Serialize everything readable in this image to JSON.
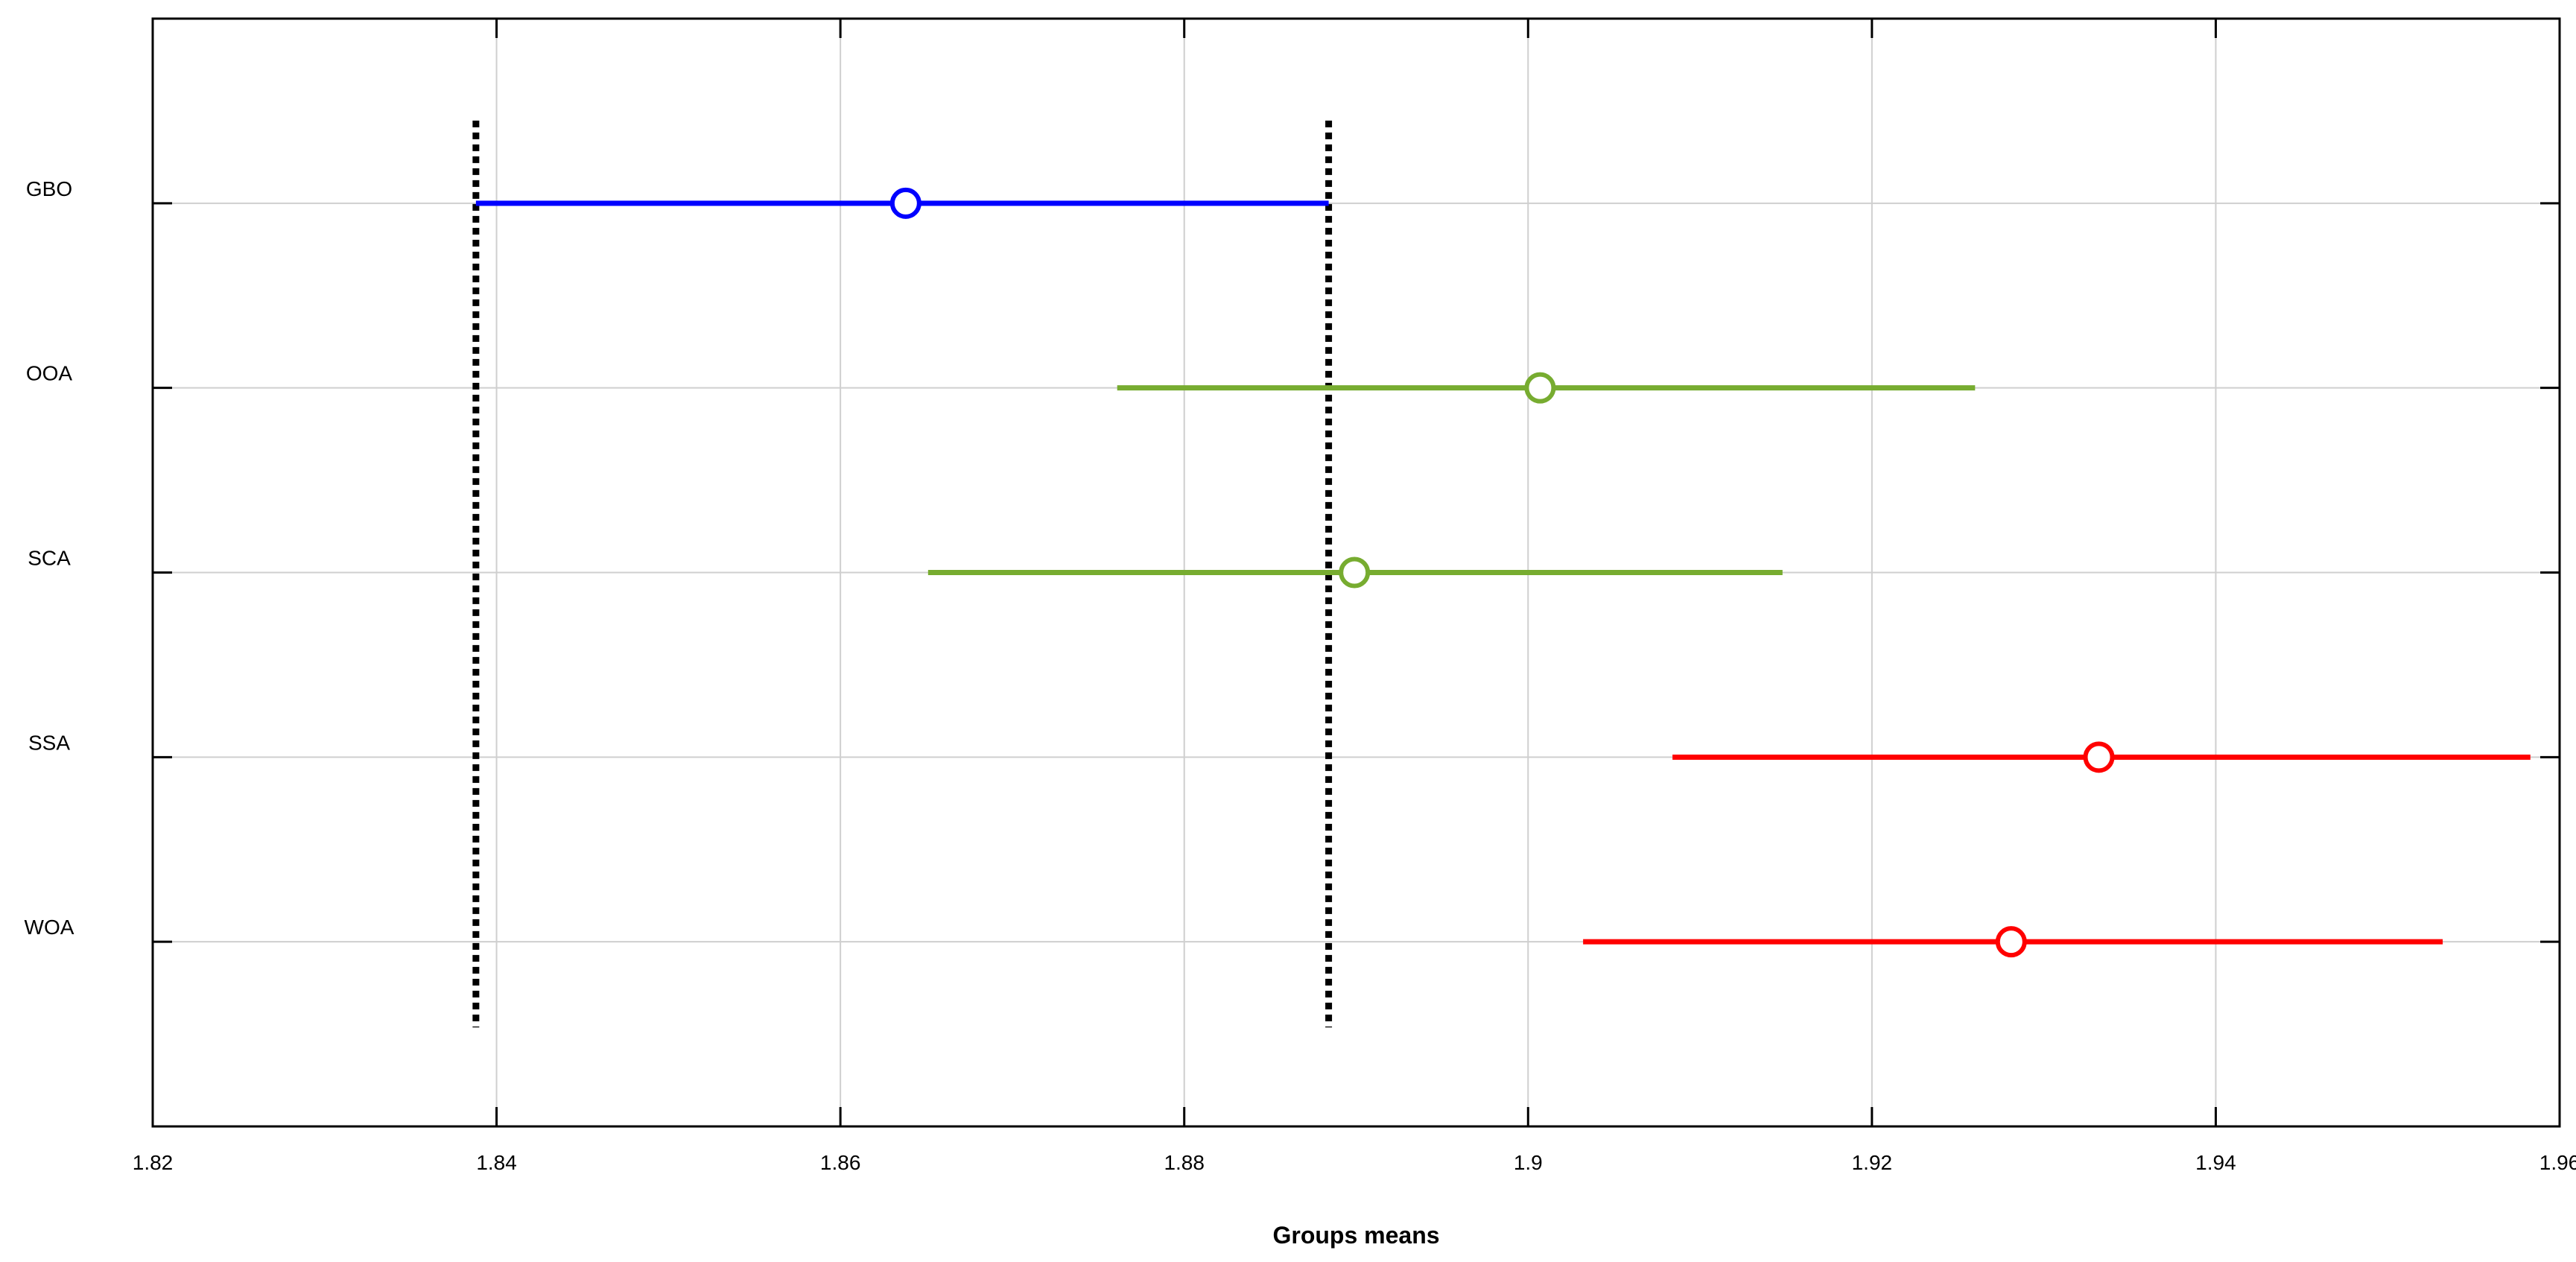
{
  "chart_data": {
    "type": "interval",
    "title": "",
    "xlabel": "Groups means",
    "ylabel": "",
    "xlim": [
      1.82,
      1.96
    ],
    "x_ticks": [
      1.82,
      1.84,
      1.86,
      1.88,
      1.9,
      1.92,
      1.94,
      1.96
    ],
    "x_tick_labels": [
      "1.82",
      "1.84",
      "1.86",
      "1.88",
      "1.9",
      "1.92",
      "1.94",
      "1.96"
    ],
    "grid": true,
    "categories": [
      "GBO",
      "OOA",
      "SCA",
      "SSA",
      "WOA"
    ],
    "groups": [
      {
        "label": "GBO",
        "mean": 1.8638,
        "lower": 1.8388,
        "upper": 1.8884,
        "color": "#0000ff"
      },
      {
        "label": "OOA",
        "mean": 1.9007,
        "lower": 1.8761,
        "upper": 1.926,
        "color": "#77ac30"
      },
      {
        "label": "SCA",
        "mean": 1.8899,
        "lower": 1.8651,
        "upper": 1.9148,
        "color": "#77ac30"
      },
      {
        "label": "SSA",
        "mean": 1.9332,
        "lower": 1.9084,
        "upper": 1.9583,
        "color": "#ff0000"
      },
      {
        "label": "WOA",
        "mean": 1.9281,
        "lower": 1.9032,
        "upper": 1.9532,
        "color": "#ff0000"
      }
    ],
    "reference_lines": [
      1.8388,
      1.8884
    ],
    "reference_line_color": "#000000"
  }
}
